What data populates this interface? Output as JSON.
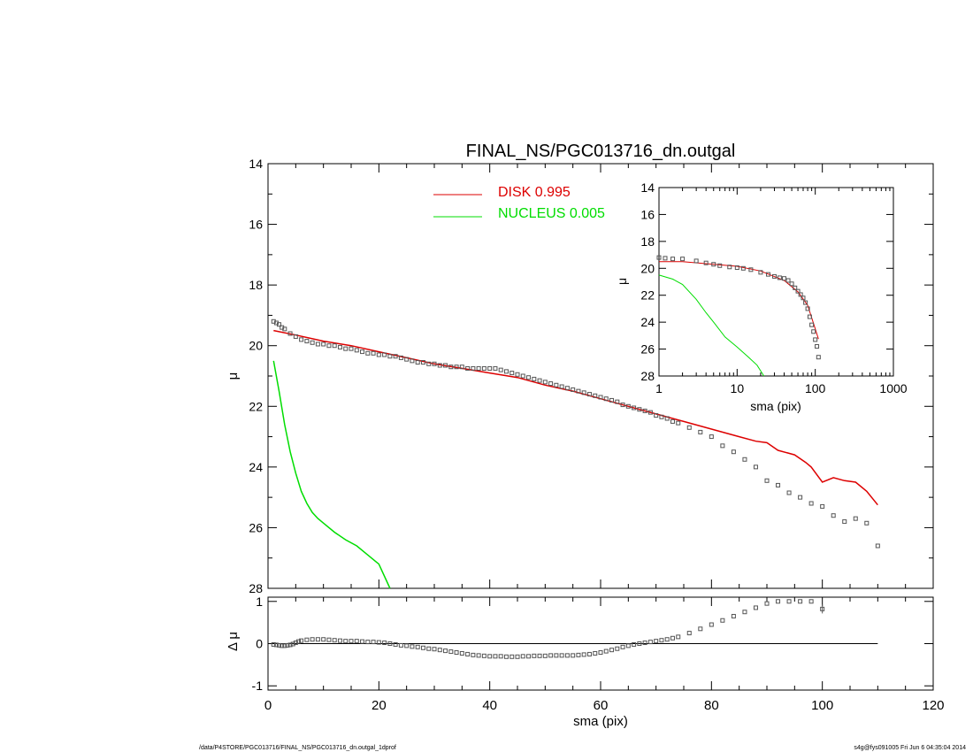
{
  "title": "FINAL_NS/PGC013716_dn.outgal",
  "footer": {
    "left": "/data/P4STORE/PGC013716/FINAL_NS/PGC013716_dn.outgal_1dprof",
    "right": "s4g@fys091005  Fri Jun  6 04:35:04 2014"
  },
  "colors": {
    "disk": "#dd0000",
    "nucleus": "#00dd00",
    "data": "#555555"
  },
  "chart_data": [
    {
      "panel": "main",
      "type": "scatter",
      "title": "FINAL_NS/PGC013716_dn.outgal",
      "xlabel": "",
      "ylabel": "μ",
      "xlim": [
        0,
        120
      ],
      "ylim": [
        28,
        14
      ],
      "y_inverted": true,
      "yticks": [
        14,
        16,
        18,
        20,
        22,
        24,
        26,
        28
      ],
      "legend": {
        "placement": "top-center",
        "entries": [
          {
            "label": "DISK  0.995",
            "color": "#dd0000"
          },
          {
            "label": "NUCLEUS  0.005",
            "color": "#00dd00"
          }
        ]
      },
      "series": [
        {
          "name": "DISK",
          "kind": "line",
          "color": "#dd0000",
          "x": [
            1,
            5,
            10,
            15,
            20,
            25,
            30,
            35,
            40,
            45,
            50,
            55,
            60,
            65,
            70,
            75,
            80,
            85,
            88,
            90,
            92,
            95,
            97,
            98,
            100,
            102,
            104,
            106,
            108,
            110
          ],
          "y": [
            19.5,
            19.65,
            19.85,
            20.0,
            20.2,
            20.4,
            20.6,
            20.75,
            20.9,
            21.05,
            21.3,
            21.5,
            21.75,
            22.0,
            22.25,
            22.5,
            22.75,
            23.0,
            23.15,
            23.2,
            23.45,
            23.6,
            23.85,
            24.0,
            24.5,
            24.35,
            24.45,
            24.5,
            24.8,
            25.25
          ]
        },
        {
          "name": "NUCLEUS",
          "kind": "line",
          "color": "#00dd00",
          "x": [
            1,
            2,
            3,
            4,
            5,
            6,
            7,
            8,
            9,
            10,
            12,
            14,
            16,
            18,
            20,
            22
          ],
          "y": [
            20.5,
            21.5,
            22.6,
            23.5,
            24.2,
            24.8,
            25.2,
            25.5,
            25.7,
            25.85,
            26.15,
            26.4,
            26.6,
            26.9,
            27.2,
            28.0
          ]
        },
        {
          "name": "data",
          "kind": "points",
          "color": "#555555",
          "x": [
            1,
            1.5,
            2,
            2.5,
            3,
            4,
            5,
            6,
            7,
            8,
            9,
            10,
            11,
            12,
            13,
            14,
            15,
            16,
            17,
            18,
            19,
            20,
            21,
            22,
            23,
            24,
            25,
            26,
            27,
            28,
            29,
            30,
            31,
            32,
            33,
            34,
            35,
            36,
            37,
            38,
            39,
            40,
            41,
            42,
            43,
            44,
            45,
            46,
            47,
            48,
            49,
            50,
            51,
            52,
            53,
            54,
            55,
            56,
            57,
            58,
            59,
            60,
            61,
            62,
            63,
            64,
            65,
            66,
            67,
            68,
            69,
            70,
            71,
            72,
            73,
            74,
            76,
            78,
            80,
            82,
            84,
            86,
            88,
            90,
            92,
            94,
            96,
            98,
            100,
            102,
            104,
            106,
            108,
            110
          ],
          "y": [
            19.2,
            19.25,
            19.3,
            19.4,
            19.45,
            19.6,
            19.7,
            19.8,
            19.85,
            19.9,
            19.95,
            19.95,
            20.0,
            20.0,
            20.05,
            20.1,
            20.1,
            20.15,
            20.2,
            20.25,
            20.25,
            20.3,
            20.3,
            20.35,
            20.35,
            20.4,
            20.45,
            20.5,
            20.55,
            20.55,
            20.6,
            20.6,
            20.65,
            20.65,
            20.7,
            20.7,
            20.7,
            20.75,
            20.75,
            20.75,
            20.75,
            20.75,
            20.75,
            20.8,
            20.85,
            20.9,
            20.95,
            21.0,
            21.05,
            21.1,
            21.15,
            21.2,
            21.25,
            21.3,
            21.35,
            21.4,
            21.45,
            21.5,
            21.55,
            21.6,
            21.65,
            21.7,
            21.75,
            21.8,
            21.85,
            21.95,
            22.0,
            22.05,
            22.1,
            22.15,
            22.2,
            22.3,
            22.35,
            22.4,
            22.5,
            22.55,
            22.7,
            22.85,
            23.0,
            23.3,
            23.5,
            23.75,
            24.0,
            24.45,
            24.6,
            24.85,
            25.0,
            25.2,
            25.3,
            25.6,
            25.8,
            25.7,
            25.85,
            26.6
          ]
        }
      ]
    },
    {
      "panel": "residual",
      "type": "scatter",
      "xlabel": "sma (pix)",
      "ylabel": "Δ μ",
      "xlim": [
        0,
        120
      ],
      "ylim": [
        -1.1,
        1.1
      ],
      "xticks": [
        0,
        20,
        40,
        60,
        80,
        100,
        120
      ],
      "yticks": [
        -1,
        0,
        1
      ],
      "zero_line": {
        "x": [
          0,
          110
        ],
        "y": 0
      },
      "series": [
        {
          "name": "residual",
          "kind": "points",
          "color": "#555555",
          "x": [
            1,
            1.5,
            2,
            2.5,
            3,
            3.5,
            4,
            4.5,
            5,
            5.5,
            6,
            7,
            8,
            9,
            10,
            11,
            12,
            13,
            14,
            15,
            16,
            17,
            18,
            19,
            20,
            21,
            22,
            23,
            24,
            25,
            26,
            27,
            28,
            29,
            30,
            31,
            32,
            33,
            34,
            35,
            36,
            37,
            38,
            39,
            40,
            41,
            42,
            43,
            44,
            45,
            46,
            47,
            48,
            49,
            50,
            51,
            52,
            53,
            54,
            55,
            56,
            57,
            58,
            59,
            60,
            61,
            62,
            63,
            64,
            65,
            66,
            67,
            68,
            69,
            70,
            71,
            72,
            73,
            74,
            76,
            78,
            80,
            82,
            84,
            86,
            88,
            90,
            92,
            94,
            96,
            98,
            100
          ],
          "y": [
            -0.02,
            -0.03,
            -0.04,
            -0.05,
            -0.05,
            -0.04,
            -0.03,
            -0.01,
            0.02,
            0.05,
            0.07,
            0.09,
            0.1,
            0.1,
            0.1,
            0.09,
            0.08,
            0.07,
            0.06,
            0.06,
            0.06,
            0.05,
            0.04,
            0.04,
            0.03,
            0.02,
            0.0,
            -0.02,
            -0.04,
            -0.05,
            -0.07,
            -0.08,
            -0.1,
            -0.12,
            -0.13,
            -0.15,
            -0.17,
            -0.19,
            -0.21,
            -0.23,
            -0.25,
            -0.27,
            -0.28,
            -0.29,
            -0.3,
            -0.3,
            -0.3,
            -0.31,
            -0.31,
            -0.31,
            -0.3,
            -0.3,
            -0.29,
            -0.29,
            -0.29,
            -0.28,
            -0.28,
            -0.28,
            -0.28,
            -0.28,
            -0.27,
            -0.26,
            -0.25,
            -0.23,
            -0.21,
            -0.18,
            -0.15,
            -0.12,
            -0.08,
            -0.05,
            -0.02,
            0.0,
            0.02,
            0.04,
            0.06,
            0.08,
            0.1,
            0.13,
            0.16,
            0.25,
            0.35,
            0.45,
            0.55,
            0.65,
            0.75,
            0.85,
            0.95,
            1.0,
            1.0,
            1.0,
            1.0,
            0.82
          ]
        }
      ]
    },
    {
      "panel": "inset",
      "type": "scatter",
      "xlabel": "sma (pix)",
      "ylabel": "μ",
      "x_scale": "log",
      "xlim": [
        1,
        1000
      ],
      "ylim": [
        28,
        14
      ],
      "y_inverted": true,
      "xticks": [
        1,
        10,
        100,
        1000
      ],
      "yticks": [
        14,
        16,
        18,
        20,
        22,
        24,
        26,
        28
      ],
      "series": [
        {
          "name": "DISK",
          "kind": "line",
          "color": "#dd0000",
          "x": [
            1,
            2,
            5,
            10,
            20,
            40,
            60,
            80,
            100,
            110
          ],
          "y": [
            19.5,
            19.5,
            19.7,
            19.85,
            20.2,
            20.9,
            21.75,
            22.75,
            24.5,
            25.25
          ]
        },
        {
          "name": "NUCLEUS",
          "kind": "line",
          "color": "#00dd00",
          "x": [
            1,
            1.5,
            2,
            3,
            4,
            5,
            7,
            10,
            14,
            18,
            22
          ],
          "y": [
            20.5,
            20.8,
            21.2,
            22.3,
            23.3,
            24.0,
            25.1,
            25.85,
            26.6,
            27.2,
            28.0
          ]
        },
        {
          "name": "data",
          "kind": "points",
          "color": "#555555",
          "x": [
            1,
            1.2,
            1.5,
            2,
            3,
            4,
            5,
            6,
            8,
            10,
            12,
            15,
            20,
            25,
            30,
            35,
            40,
            45,
            50,
            55,
            60,
            65,
            70,
            75,
            80,
            85,
            90,
            95,
            100,
            105,
            110
          ],
          "y": [
            19.2,
            19.25,
            19.3,
            19.3,
            19.45,
            19.6,
            19.7,
            19.8,
            19.9,
            19.95,
            20.0,
            20.1,
            20.3,
            20.45,
            20.6,
            20.7,
            20.75,
            20.9,
            21.15,
            21.45,
            21.7,
            21.95,
            22.2,
            22.55,
            23.0,
            23.6,
            24.2,
            24.7,
            25.3,
            25.8,
            26.6
          ]
        }
      ]
    }
  ]
}
